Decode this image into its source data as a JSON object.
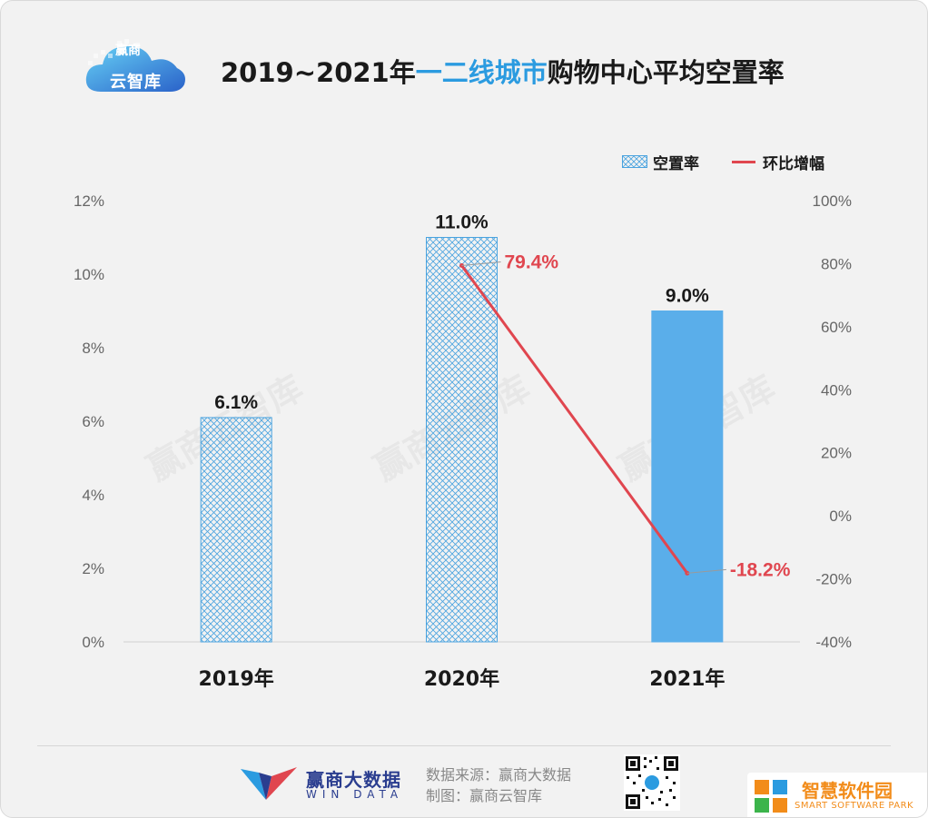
{
  "header": {
    "logo_top": "赢商",
    "logo_bottom": "云智库",
    "title_prefix": "2019~2021年",
    "title_highlight": "一二线城市",
    "title_suffix": "购物中心平均空置率"
  },
  "legend": {
    "bar_label": "空置率",
    "line_label": "环比增幅"
  },
  "watermark_text": "赢商云智库",
  "footer": {
    "brand": "赢商大数据",
    "brand_en": "WIN DATA",
    "source_line": "数据来源：赢商大数据",
    "maker_line": "制图：赢商云智库"
  },
  "corner_mark": {
    "title": "智慧软件园",
    "subtitle": "SMART SOFTWARE PARK"
  },
  "chart_data": {
    "type": "bar",
    "categories": [
      "2019年",
      "2020年",
      "2021年"
    ],
    "series": [
      {
        "name": "空置率",
        "kind": "bar",
        "axis": "left",
        "values": [
          6.1,
          11.0,
          9.0
        ],
        "labels": [
          "6.1%",
          "11.0%",
          "9.0%"
        ],
        "styles": [
          "hatched",
          "hatched",
          "solid"
        ]
      },
      {
        "name": "环比增幅",
        "kind": "line",
        "axis": "right",
        "values": [
          null,
          79.4,
          -18.2
        ],
        "labels": [
          "",
          "79.4%",
          "-18.2%"
        ]
      }
    ],
    "left_axis": {
      "ylim": [
        0,
        12
      ],
      "ticks": [
        0,
        2,
        4,
        6,
        8,
        10,
        12
      ],
      "tick_labels": [
        "0%",
        "2%",
        "4%",
        "6%",
        "8%",
        "10%",
        "12%"
      ]
    },
    "right_axis": {
      "ylim": [
        -40,
        100
      ],
      "ticks": [
        -40,
        -20,
        0,
        20,
        40,
        60,
        80,
        100
      ],
      "tick_labels": [
        "-40%",
        "-20%",
        "0%",
        "20%",
        "40%",
        "60%",
        "80%",
        "100%"
      ]
    },
    "grid": false,
    "legend_position": "top-right",
    "colors": {
      "bar": "#5aaeea",
      "bar_hatch": "#4aa3df",
      "line": "#e0464f",
      "line_label": "#e0464f",
      "value_label": "#1a1a1a",
      "axis_tick": "#666666"
    }
  }
}
